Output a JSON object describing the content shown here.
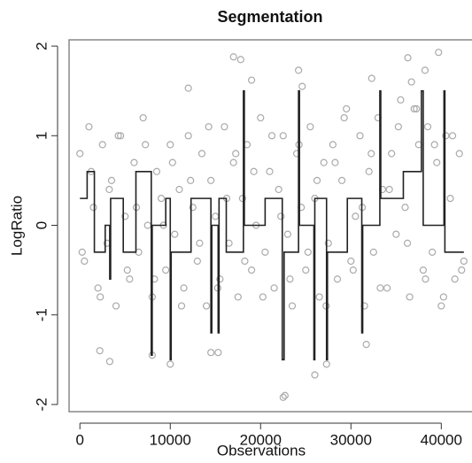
{
  "chart_data": {
    "type": "scatter",
    "title": "Segmentation",
    "x_label": "Observations",
    "y_label": "LogRatio",
    "xlim": [
      -1200,
      43400
    ],
    "ylim": [
      -2.08,
      2.07
    ],
    "xticks": [
      0,
      10000,
      20000,
      30000,
      40000
    ],
    "yticks": [
      -2,
      -1,
      0,
      1,
      2
    ],
    "series": [
      {
        "type": "scatter",
        "color": "#aaaaaa",
        "x": [
          0,
          500,
          1000,
          1500,
          2000,
          2500,
          3000,
          3500,
          4000,
          4500,
          5000,
          5500,
          6000,
          6500,
          7000,
          7500,
          8000,
          8500,
          9000,
          9500,
          10000,
          10500,
          11000,
          11500,
          12000,
          12500,
          13000,
          13500,
          14000,
          14500,
          15000,
          15500,
          16000,
          16500,
          17000,
          17500,
          18000,
          18500,
          19000,
          19500,
          20000,
          20500,
          21000,
          21500,
          22000,
          22500,
          23000,
          23500,
          24000,
          24500,
          25000,
          25500,
          26000,
          26500,
          27000,
          27500,
          28000,
          28500,
          29000,
          29500,
          30000,
          30500,
          31000,
          31500,
          32000,
          32500,
          33000,
          33500,
          34000,
          34500,
          35000,
          35500,
          36000,
          36500,
          37000,
          37500,
          38000,
          38500,
          39000,
          39500,
          40000,
          40500,
          41000,
          41500,
          42000,
          42500,
          250,
          1250,
          2250,
          3250,
          4250,
          5250,
          6250,
          7250,
          8250,
          9250,
          10250,
          11250,
          12250,
          13250,
          14250,
          15250,
          16250,
          17250,
          18250,
          19250,
          20250,
          21250,
          22250,
          23250,
          24250,
          25250,
          26250,
          27250,
          28250,
          29250,
          30250,
          31250,
          32250,
          33250,
          34250,
          35250,
          36250,
          37250,
          38250,
          39250,
          40250,
          41250,
          42250,
          22500,
          22700,
          17000,
          17800,
          39700,
          26000,
          27300,
          10000,
          3300,
          12000,
          24200,
          24600,
          36300,
          38200,
          19000,
          8000,
          15300,
          32300,
          2200,
          14500,
          36700,
          31700
        ],
        "values": [
          0.8,
          -0.4,
          1.1,
          0.2,
          -0.7,
          0.9,
          -0.2,
          0.5,
          -0.9,
          1.0,
          0.1,
          -0.6,
          0.7,
          -0.3,
          1.2,
          0.0,
          -0.8,
          0.6,
          0.3,
          -0.5,
          0.9,
          -0.1,
          0.4,
          -0.7,
          1.0,
          0.2,
          -0.4,
          0.8,
          -0.9,
          0.5,
          0.1,
          -0.6,
          1.1,
          -0.2,
          0.7,
          -0.8,
          0.3,
          0.9,
          -0.5,
          0.0,
          1.2,
          -0.3,
          0.6,
          -0.7,
          0.4,
          1.0,
          -0.1,
          -0.9,
          0.8,
          0.2,
          -0.5,
          1.1,
          0.3,
          -0.8,
          0.7,
          -0.2,
          0.9,
          -0.6,
          0.5,
          1.3,
          -0.4,
          0.1,
          1.0,
          -0.9,
          0.6,
          -0.3,
          1.2,
          0.4,
          -0.7,
          0.8,
          -0.1,
          1.4,
          0.2,
          -0.8,
          1.3,
          0.9,
          -0.5,
          1.1,
          -0.3,
          0.7,
          -0.9,
          1.0,
          0.3,
          -0.6,
          0.8,
          -0.4,
          -0.3,
          0.6,
          -0.8,
          0.4,
          1.0,
          -0.5,
          0.2,
          0.9,
          -0.6,
          0.0,
          0.7,
          -0.9,
          0.5,
          -0.2,
          1.1,
          -0.7,
          0.3,
          0.8,
          -0.4,
          0.6,
          -0.8,
          1.0,
          0.1,
          -0.6,
          0.9,
          -0.3,
          0.5,
          -0.9,
          0.7,
          1.2,
          -0.5,
          0.2,
          0.8,
          -0.7,
          0.4,
          1.1,
          -0.2,
          1.3,
          -0.6,
          0.9,
          -0.8,
          1.0,
          -0.5,
          -1.92,
          -1.9,
          1.88,
          1.85,
          1.93,
          -1.67,
          -1.55,
          -1.55,
          -1.52,
          1.53,
          1.73,
          1.55,
          1.87,
          1.73,
          1.62,
          -1.45,
          -1.42,
          1.64,
          -1.4,
          -1.42,
          1.6,
          -1.33
        ]
      },
      {
        "type": "line",
        "color": "#222222",
        "x": [
          0,
          800,
          800,
          1600,
          1600,
          2800,
          2800,
          3300,
          3300,
          3400,
          3400,
          4800,
          4800,
          6200,
          6200,
          7900,
          7900,
          8000,
          8000,
          9500,
          9500,
          10000,
          10000,
          10100,
          10100,
          12300,
          12300,
          14500,
          14500,
          14600,
          14600,
          15300,
          15300,
          15400,
          15400,
          16200,
          16200,
          18100,
          18100,
          18200,
          18200,
          20500,
          20500,
          22400,
          22400,
          22600,
          22600,
          24200,
          24200,
          24300,
          24300,
          25900,
          25900,
          26000,
          26000,
          27300,
          27300,
          27400,
          27400,
          29600,
          29600,
          31200,
          31200,
          31300,
          31300,
          33200,
          33200,
          33300,
          33300,
          35800,
          35800,
          37800,
          37800,
          38000,
          38000,
          40300,
          40300,
          40400,
          40400,
          42500
        ],
        "values": [
          0.3,
          0.3,
          0.6,
          0.6,
          -0.3,
          -0.3,
          0,
          0,
          -0.6,
          -0.6,
          0.3,
          0.3,
          -0.3,
          -0.3,
          0.6,
          0.6,
          -1.45,
          -1.45,
          0,
          0,
          0.3,
          0.3,
          -1.5,
          -1.5,
          -0.3,
          -0.3,
          0.3,
          0.3,
          -1.2,
          -1.2,
          0,
          0,
          -1.2,
          -1.2,
          0.3,
          0.3,
          -0.3,
          -0.3,
          1.5,
          1.5,
          0,
          0,
          0.3,
          0.3,
          -1.5,
          -1.5,
          -0.3,
          -0.3,
          1.5,
          1.5,
          0,
          0,
          -1.5,
          -1.5,
          0.3,
          0.3,
          -1.5,
          -1.5,
          -0.3,
          -0.3,
          0.3,
          0.3,
          -1.2,
          -1.2,
          0,
          0,
          1.5,
          1.5,
          0.3,
          0.3,
          0.6,
          0.6,
          1.5,
          1.5,
          0,
          0,
          1.5,
          1.5,
          -0.3,
          -0.3
        ]
      }
    ]
  }
}
